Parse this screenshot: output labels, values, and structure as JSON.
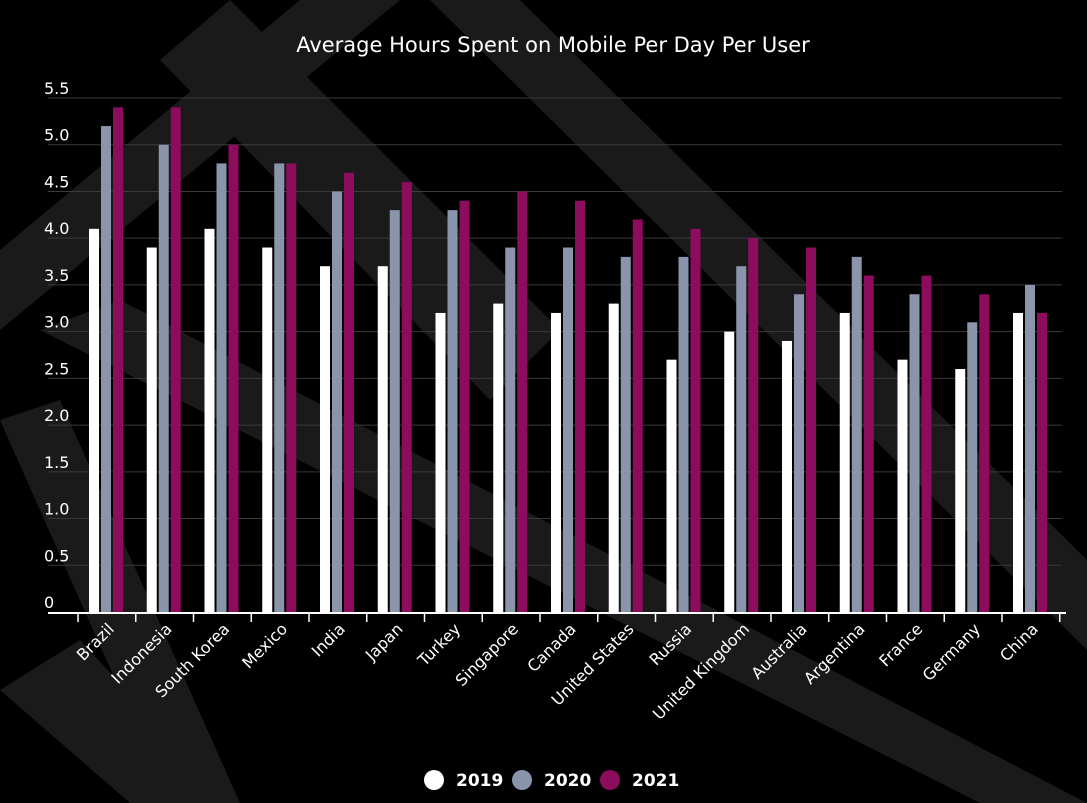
{
  "chart_data": {
    "type": "bar",
    "title": "Average Hours Spent on Mobile Per Day Per User",
    "xlabel": "",
    "ylabel": "",
    "ylim": [
      0,
      5.5
    ],
    "yticks": [
      "0",
      "0.5",
      "1.0",
      "1.5",
      "2.0",
      "2.5",
      "3.0",
      "3.5",
      "4.0",
      "4.5",
      "5.0",
      "5.5"
    ],
    "grid": true,
    "legend_position": "bottom",
    "categories": [
      "Brazil",
      "Indonesia",
      "South Korea",
      "Mexico",
      "India",
      "Japan",
      "Turkey",
      "Singapore",
      "Canada",
      "United States",
      "Russia",
      "United Kingdom",
      "Australia",
      "Argentina",
      "France",
      "Germany",
      "China"
    ],
    "series": [
      {
        "name": "2019",
        "color": "#ffffff",
        "values": [
          4.1,
          3.9,
          4.1,
          3.9,
          3.7,
          3.7,
          3.2,
          3.3,
          3.2,
          3.3,
          2.7,
          3.0,
          2.9,
          3.2,
          2.7,
          2.6,
          3.2
        ]
      },
      {
        "name": "2020",
        "color": "#8a94ab",
        "values": [
          5.2,
          5.0,
          4.8,
          4.8,
          4.5,
          4.3,
          4.3,
          3.9,
          3.9,
          3.8,
          3.8,
          3.7,
          3.4,
          3.8,
          3.4,
          3.1,
          3.5
        ]
      },
      {
        "name": "2021",
        "color": "#8e0c5e",
        "values": [
          5.4,
          5.4,
          5.0,
          4.8,
          4.7,
          4.6,
          4.4,
          4.5,
          4.4,
          4.2,
          4.1,
          4.0,
          3.9,
          3.6,
          3.6,
          3.4,
          3.2
        ]
      }
    ]
  }
}
